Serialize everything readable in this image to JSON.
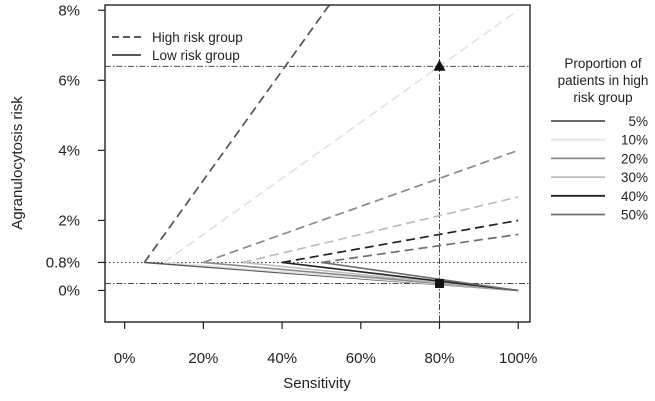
{
  "chart_data": {
    "type": "line",
    "xlabel": "Sensitivity",
    "ylabel": "Agranulocytosis risk",
    "xlim": [
      -0.05,
      1.03
    ],
    "ylim": [
      -0.009,
      0.0815
    ],
    "x_ticks": [
      {
        "value": 0.0,
        "label": "0%"
      },
      {
        "value": 0.2,
        "label": "20%"
      },
      {
        "value": 0.4,
        "label": "40%"
      },
      {
        "value": 0.6,
        "label": "60%"
      },
      {
        "value": 0.8,
        "label": "80%"
      },
      {
        "value": 1.0,
        "label": "100%"
      }
    ],
    "y_ticks": [
      {
        "value": 0.0,
        "label": "0%"
      },
      {
        "value": 0.008,
        "label": "0.8%"
      },
      {
        "value": 0.02,
        "label": "2%"
      },
      {
        "value": 0.04,
        "label": "4%"
      },
      {
        "value": 0.06,
        "label": "6%"
      },
      {
        "value": 0.08,
        "label": "8%"
      }
    ],
    "reference_lines": {
      "baseline_risk_y": 0.008,
      "selected_sensitivity_x": 0.8,
      "high_risk_marker_y": 0.064,
      "low_risk_marker_y": 0.002
    },
    "markers": [
      {
        "shape": "triangle",
        "x": 0.8,
        "y": 0.064,
        "group": "high"
      },
      {
        "shape": "square",
        "x": 0.8,
        "y": 0.002,
        "group": "low"
      }
    ],
    "line_style_legend": {
      "high": "High risk group",
      "low": "Low risk group"
    },
    "proportion_legend": {
      "title": [
        "Proportion of",
        "patients in high",
        "risk group"
      ],
      "placement": "right"
    },
    "series": [
      {
        "name": "5%",
        "proportion": 0.05,
        "color": "#555555",
        "high": {
          "x": [
            0.05,
            0.52
          ],
          "y": [
            0.008,
            0.0815
          ]
        },
        "low": {
          "x": [
            0.05,
            1.0
          ],
          "y": [
            0.008,
            0.0
          ]
        }
      },
      {
        "name": "10%",
        "proportion": 0.1,
        "color": "#e2e2e2",
        "high": {
          "x": [
            0.1,
            1.0
          ],
          "y": [
            0.008,
            0.08
          ]
        },
        "low": {
          "x": [
            0.1,
            1.0
          ],
          "y": [
            0.008,
            0.0
          ]
        }
      },
      {
        "name": "20%",
        "proportion": 0.2,
        "color": "#8a8a8a",
        "high": {
          "x": [
            0.2,
            1.0
          ],
          "y": [
            0.008,
            0.04
          ]
        },
        "low": {
          "x": [
            0.2,
            1.0
          ],
          "y": [
            0.008,
            0.0
          ]
        }
      },
      {
        "name": "30%",
        "proportion": 0.3,
        "color": "#bdbdbd",
        "high": {
          "x": [
            0.3,
            1.0
          ],
          "y": [
            0.008,
            0.0267
          ]
        },
        "low": {
          "x": [
            0.3,
            1.0
          ],
          "y": [
            0.008,
            0.0
          ]
        }
      },
      {
        "name": "40%",
        "proportion": 0.4,
        "color": "#222222",
        "high": {
          "x": [
            0.4,
            1.0
          ],
          "y": [
            0.008,
            0.02
          ]
        },
        "low": {
          "x": [
            0.4,
            1.0
          ],
          "y": [
            0.008,
            0.0
          ]
        }
      },
      {
        "name": "50%",
        "proportion": 0.5,
        "color": "#6e6e6e",
        "high": {
          "x": [
            0.5,
            1.0
          ],
          "y": [
            0.008,
            0.016
          ]
        },
        "low": {
          "x": [
            0.5,
            1.0
          ],
          "y": [
            0.008,
            0.0
          ]
        }
      }
    ]
  }
}
